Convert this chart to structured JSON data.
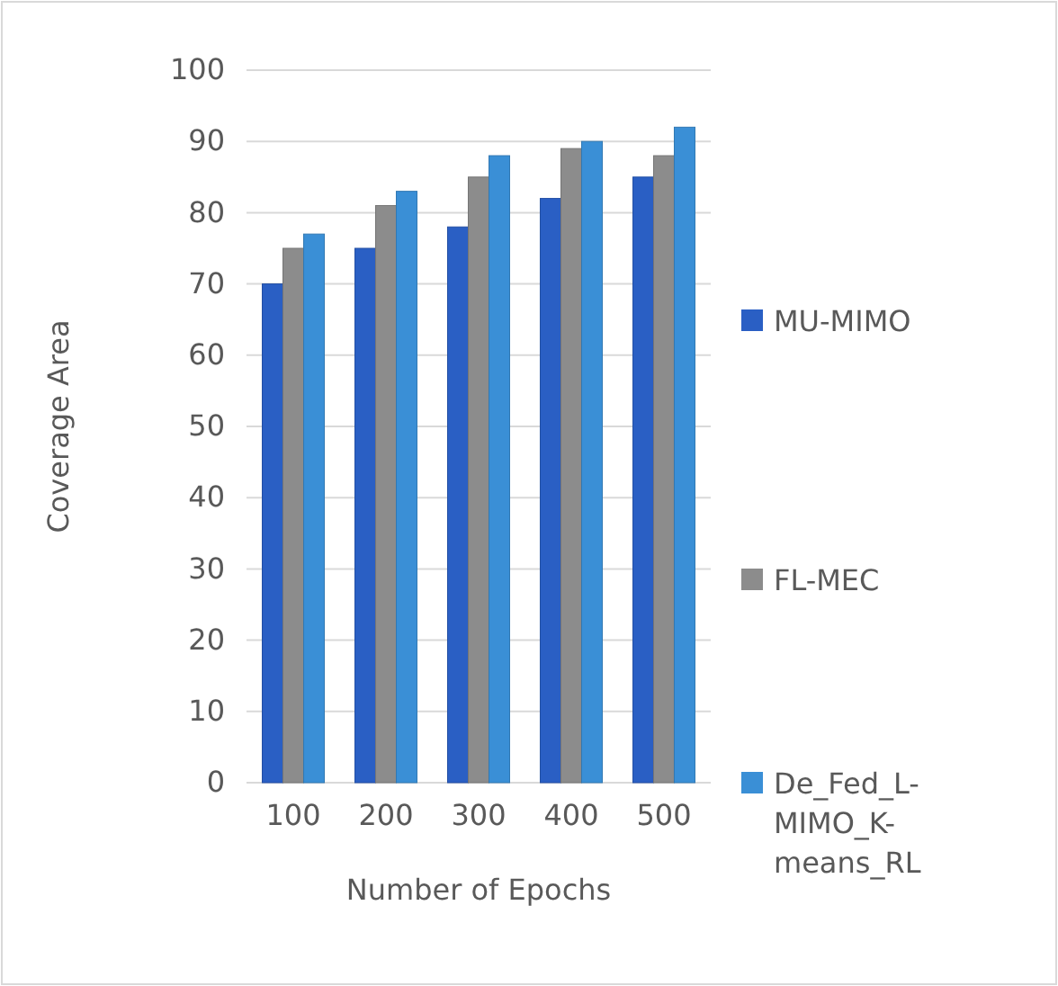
{
  "chart_data": {
    "type": "bar",
    "xlabel": "Number of Epochs",
    "ylabel": "Coverage Area",
    "categories": [
      "100",
      "200",
      "300",
      "400",
      "500"
    ],
    "series": [
      {
        "name": "MU-MIMO",
        "color": "#2a5fc4",
        "values": [
          70,
          75,
          78,
          82,
          85
        ]
      },
      {
        "name": "FL-MEC",
        "color": "#8c8c8c",
        "values": [
          75,
          81,
          85,
          89,
          88
        ]
      },
      {
        "name": "De_Fed_L-MIMO_K-means_RL",
        "color": "#3a8fd6",
        "values": [
          77,
          83,
          88,
          90,
          92
        ]
      }
    ],
    "ylim": [
      0,
      100
    ],
    "yticks": [
      0,
      10,
      20,
      30,
      40,
      50,
      60,
      70,
      80,
      90,
      100
    ],
    "grid": "y",
    "legend": "right"
  }
}
